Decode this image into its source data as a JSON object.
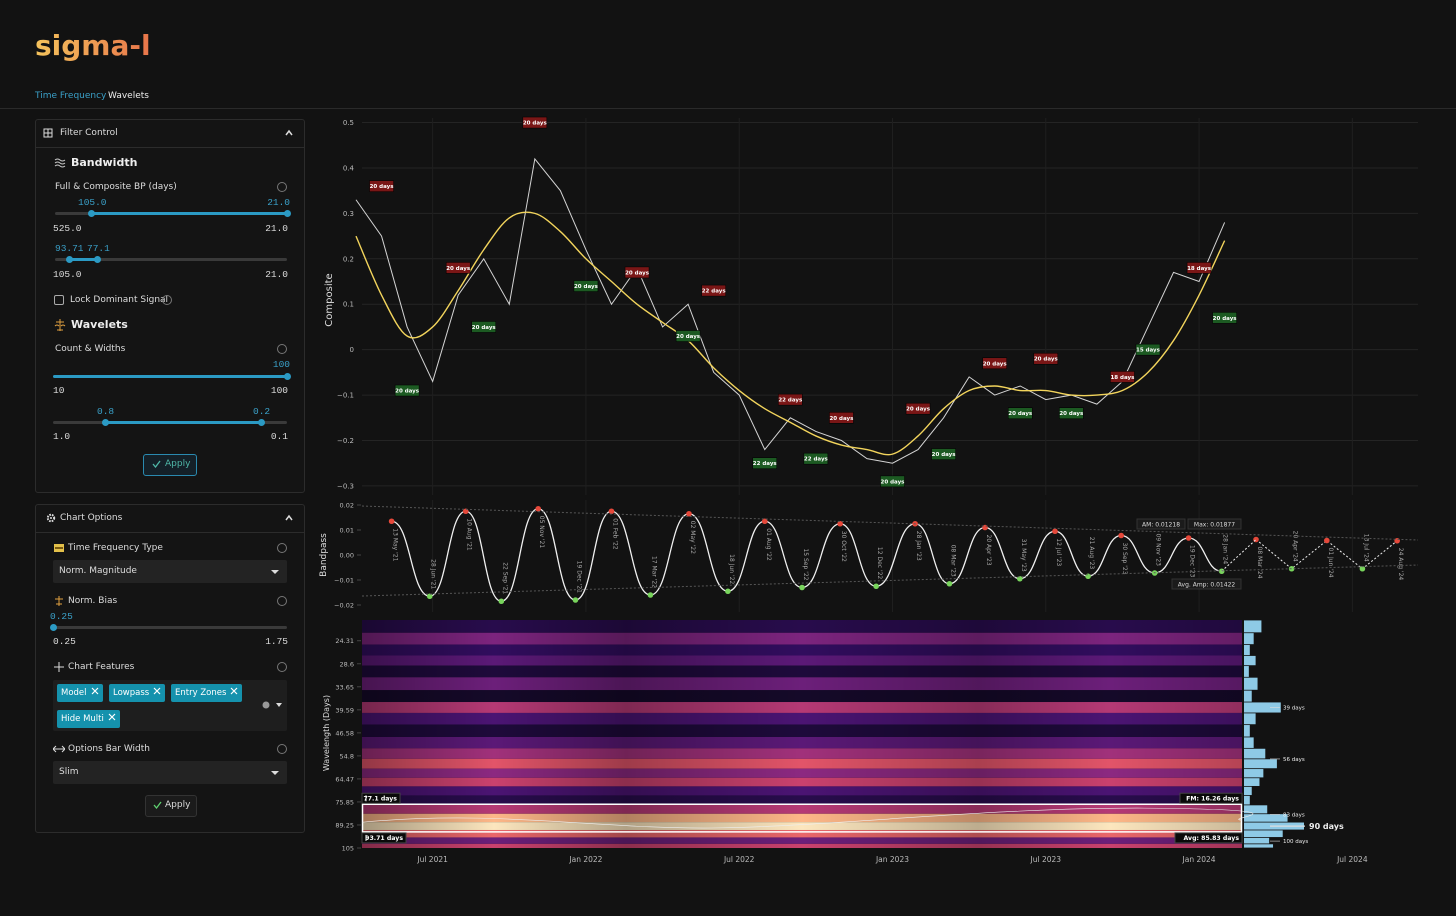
{
  "header": {
    "title": "sigma-l"
  },
  "tabs": [
    "Time Frequency",
    "Wavelets"
  ],
  "filter_control": {
    "title": "Filter Control",
    "bandwidth": {
      "heading": "Bandwidth",
      "label": "Full & Composite BP (days)",
      "slider1": {
        "values": [
          "105.0",
          "21.0"
        ],
        "range": [
          "525.0",
          "21.0"
        ]
      },
      "slider2": {
        "values": [
          "93.71",
          "77.1"
        ],
        "range": [
          "105.0",
          "21.0"
        ]
      }
    },
    "lock_label": "Lock Dominant Signal",
    "wavelets": {
      "heading": "Wavelets",
      "label": "Count & Widths",
      "slider1": {
        "values": [
          "100"
        ],
        "range": [
          "10",
          "100"
        ]
      },
      "slider2": {
        "values": [
          "0.8",
          "0.2"
        ],
        "range": [
          "1.0",
          "0.1"
        ]
      }
    },
    "apply": "Apply"
  },
  "chart_options": {
    "title": "Chart Options",
    "tf_type": {
      "label": "Time Frequency Type",
      "value": "Norm. Magnitude"
    },
    "norm_bias": {
      "label": "Norm. Bias",
      "value": "0.25",
      "range": [
        "0.25",
        "1.75"
      ]
    },
    "features": {
      "label": "Chart Features",
      "tags": [
        "Model",
        "Lowpass",
        "Entry Zones",
        "Hide Multi"
      ]
    },
    "bar_width": {
      "label": "Options Bar Width",
      "value": "Slim"
    },
    "apply": "Apply"
  },
  "chart_data": [
    {
      "type": "line",
      "y_label": "Composite",
      "x": [
        "2021-04",
        "2021-05",
        "2021-06",
        "2021-07",
        "2021-08",
        "2021-09",
        "2021-10",
        "2021-11",
        "2021-12",
        "2022-01",
        "2022-02",
        "2022-03",
        "2022-04",
        "2022-05",
        "2022-06",
        "2022-07",
        "2022-08",
        "2022-09",
        "2022-10",
        "2022-11",
        "2022-12",
        "2023-01",
        "2023-02",
        "2023-03",
        "2023-04",
        "2023-05",
        "2023-06",
        "2023-07",
        "2023-08",
        "2023-09",
        "2023-10",
        "2023-11",
        "2023-12",
        "2024-01",
        "2024-02"
      ],
      "series": [
        {
          "color": "#d4d4d4",
          "smooth": false,
          "values": [
            0.33,
            0.25,
            0.05,
            -0.07,
            0.12,
            0.2,
            0.1,
            0.42,
            0.35,
            0.22,
            0.1,
            0.18,
            0.05,
            0.1,
            -0.05,
            -0.1,
            -0.22,
            -0.15,
            -0.18,
            -0.2,
            -0.24,
            -0.25,
            -0.22,
            -0.15,
            -0.06,
            -0.1,
            -0.08,
            -0.11,
            -0.1,
            -0.12,
            -0.07,
            0.05,
            0.17,
            0.15,
            0.28
          ]
        },
        {
          "color": "#f2d45c",
          "smooth": true,
          "values": [
            0.25,
            0.12,
            0.03,
            0.05,
            0.13,
            0.22,
            0.29,
            0.3,
            0.26,
            0.2,
            0.15,
            0.1,
            0.06,
            0.02,
            -0.04,
            -0.09,
            -0.13,
            -0.16,
            -0.19,
            -0.21,
            -0.22,
            -0.23,
            -0.19,
            -0.13,
            -0.09,
            -0.08,
            -0.09,
            -0.09,
            -0.1,
            -0.1,
            -0.09,
            -0.05,
            0.02,
            0.12,
            0.24
          ]
        }
      ],
      "xlim": [
        "2021-04",
        "2024-10"
      ],
      "xticks": [
        {
          "value": "2021-07",
          "label": "Jul 2021"
        },
        {
          "value": "2022-01",
          "label": "Jan 2022"
        },
        {
          "value": "2022-07",
          "label": "Jul 2022"
        },
        {
          "value": "2023-01",
          "label": "Jan 2023"
        },
        {
          "value": "2023-07",
          "label": "Jul 2023"
        },
        {
          "value": "2024-01",
          "label": "Jan 2024"
        },
        {
          "value": "2024-07",
          "label": "Jul 2024"
        }
      ],
      "ylim": [
        -0.32,
        0.51
      ],
      "yticks": [
        {
          "value": -0.3,
          "label": "−0.3"
        },
        {
          "value": -0.2,
          "label": "−0.2"
        },
        {
          "value": -0.1,
          "label": "−0.1"
        },
        0,
        0.1,
        0.2,
        0.3,
        0.4,
        0.5
      ],
      "grid": true,
      "annotations": [
        {
          "text": "20 days",
          "x": "2021-05",
          "y": 0.36,
          "color": "#7a1616"
        },
        {
          "text": "20 days",
          "x": "2021-06",
          "y": -0.09,
          "color": "#1c5a22"
        },
        {
          "text": "20 days",
          "x": "2021-09",
          "y": 0.05,
          "color": "#1c5a22"
        },
        {
          "text": "20 days",
          "x": "2021-08",
          "y": 0.18,
          "color": "#7a1616"
        },
        {
          "text": "20 days",
          "x": "2021-11",
          "y": 0.5,
          "color": "#7a1616"
        },
        {
          "text": "20 days",
          "x": "2022-01",
          "y": 0.14,
          "color": "#1c5a22"
        },
        {
          "text": "20 days",
          "x": "2022-03",
          "y": 0.17,
          "color": "#7a1616"
        },
        {
          "text": "20 days",
          "x": "2022-05",
          "y": 0.03,
          "color": "#1c5a22"
        },
        {
          "text": "22 days",
          "x": "2022-06",
          "y": 0.13,
          "color": "#7a1616"
        },
        {
          "text": "22 days",
          "x": "2022-08",
          "y": -0.25,
          "color": "#1c5a22"
        },
        {
          "text": "22 days",
          "x": "2022-09",
          "y": -0.11,
          "color": "#7a1616"
        },
        {
          "text": "22 days",
          "x": "2022-10",
          "y": -0.24,
          "color": "#1c5a22"
        },
        {
          "text": "20 days",
          "x": "2022-11",
          "y": -0.15,
          "color": "#7a1616"
        },
        {
          "text": "20 days",
          "x": "2023-01",
          "y": -0.29,
          "color": "#1c5a22"
        },
        {
          "text": "20 days",
          "x": "2023-02",
          "y": -0.13,
          "color": "#7a1616"
        },
        {
          "text": "20 days",
          "x": "2023-03",
          "y": -0.23,
          "color": "#1c5a22"
        },
        {
          "text": "20 days",
          "x": "2023-05",
          "y": -0.03,
          "color": "#7a1616"
        },
        {
          "text": "20 days",
          "x": "2023-06",
          "y": -0.14,
          "color": "#1c5a22"
        },
        {
          "text": "20 days",
          "x": "2023-07",
          "y": -0.02,
          "color": "#7a1616"
        },
        {
          "text": "20 days",
          "x": "2023-08",
          "y": -0.14,
          "color": "#1c5a22"
        },
        {
          "text": "18 days",
          "x": "2023-10",
          "y": -0.06,
          "color": "#7a1616"
        },
        {
          "text": "15 days",
          "x": "2023-11",
          "y": 0.0,
          "color": "#1c5a22"
        },
        {
          "text": "18 days",
          "x": "2024-01",
          "y": 0.18,
          "color": "#7a1616"
        },
        {
          "text": "20 days",
          "x": "2024-02",
          "y": 0.07,
          "color": "#1c5a22"
        }
      ]
    },
    {
      "type": "line",
      "y_label": "Bandpass",
      "series": [
        {
          "color": "#f0f0f0",
          "dash": false,
          "x": [
            "13 May '21",
            "28 Jun '21",
            "10 Aug '21",
            "22 Sep '21",
            "05 Nov '21",
            "19 Dec '21",
            "01 Feb '22",
            "17 Mar '22",
            "02 May '22",
            "18 Jun '22",
            "01 Aug '22",
            "15 Sep '22",
            "30 Oct '22",
            "12 Dec '22",
            "28 Jan '23",
            "08 Mar '23",
            "20 Apr '23",
            "31 May '23",
            "12 Jul '23",
            "21 Aug '23",
            "30 Sep '23",
            "09 Nov '23",
            "19 Dec '23",
            "28 Jan '24"
          ],
          "values": [
            0.0135,
            -0.0165,
            0.0175,
            -0.0185,
            0.0185,
            -0.018,
            0.0175,
            -0.016,
            0.0165,
            -0.0145,
            0.0135,
            -0.013,
            0.0125,
            -0.0125,
            0.0125,
            -0.0115,
            0.011,
            -0.0095,
            0.0095,
            -0.0085,
            0.0078,
            -0.0072,
            0.0068,
            -0.0065
          ]
        },
        {
          "color": "#f0f0f0",
          "dash": true,
          "x": [
            "08 Mar '24",
            "20 Apr '24",
            "01 Jun '24",
            "13 Jul '24",
            "24 Aug '24"
          ],
          "values": [
            0.0062,
            -0.0055,
            0.0058,
            -0.0055,
            0.0057
          ]
        }
      ],
      "ylim": [
        -0.022,
        0.022
      ],
      "yticks": [
        {
          "value": -0.02,
          "label": "−0.02"
        },
        {
          "value": -0.01,
          "label": "−0.01"
        },
        {
          "value": 0,
          "label": "0.00"
        },
        0.01,
        0.02
      ],
      "annotations": [
        {
          "text": "AM: 0.01218"
        },
        {
          "text": "Max: 0.01877"
        },
        {
          "text": "Avg. Amp: 0.01422"
        }
      ]
    },
    {
      "type": "heatmap",
      "y_label": "Wavelength (Days)",
      "log_y": true,
      "y_inverted": true,
      "xlim": [
        "2021-04",
        "2024-03"
      ],
      "ylim": [
        21,
        105
      ],
      "yticks": [
        24.31,
        28.6,
        33.65,
        39.59,
        46.58,
        54.8,
        64.47,
        75.85,
        89.25,
        105
      ],
      "wavelengths": [
        22,
        24,
        26,
        28,
        30,
        33,
        36,
        39,
        42,
        46,
        50,
        54,
        58,
        62,
        66,
        70,
        75,
        80,
        85,
        90,
        95,
        100,
        104
      ],
      "power": [
        0.15,
        0.45,
        0.2,
        0.35,
        0.1,
        0.4,
        0.05,
        0.6,
        0.3,
        0.1,
        0.35,
        0.55,
        0.72,
        0.5,
        0.65,
        0.3,
        0.15,
        0.6,
        0.9,
        1.0,
        0.75,
        0.4,
        0.65
      ],
      "histogram": {
        "color": "#8ecae6",
        "values": [
          18,
          10,
          6,
          12,
          5,
          14,
          8,
          38,
          12,
          6,
          10,
          22,
          34,
          20,
          16,
          8,
          6,
          24,
          45,
          62,
          40,
          26,
          30
        ]
      },
      "peaks": {
        "values": [
          39,
          56,
          83,
          90,
          100
        ],
        "value_labels": [
          "39 days",
          "56 days",
          "83 days",
          "90 days",
          "100 days"
        ]
      },
      "band": {
        "values": [
          77.1,
          93.71
        ],
        "value_labels": [
          "77.1 days",
          "93.71 days"
        ]
      },
      "annotations": [
        {
          "text": "FM: 16.26 days"
        },
        {
          "text": "Avg: 85.83 days"
        }
      ]
    }
  ]
}
